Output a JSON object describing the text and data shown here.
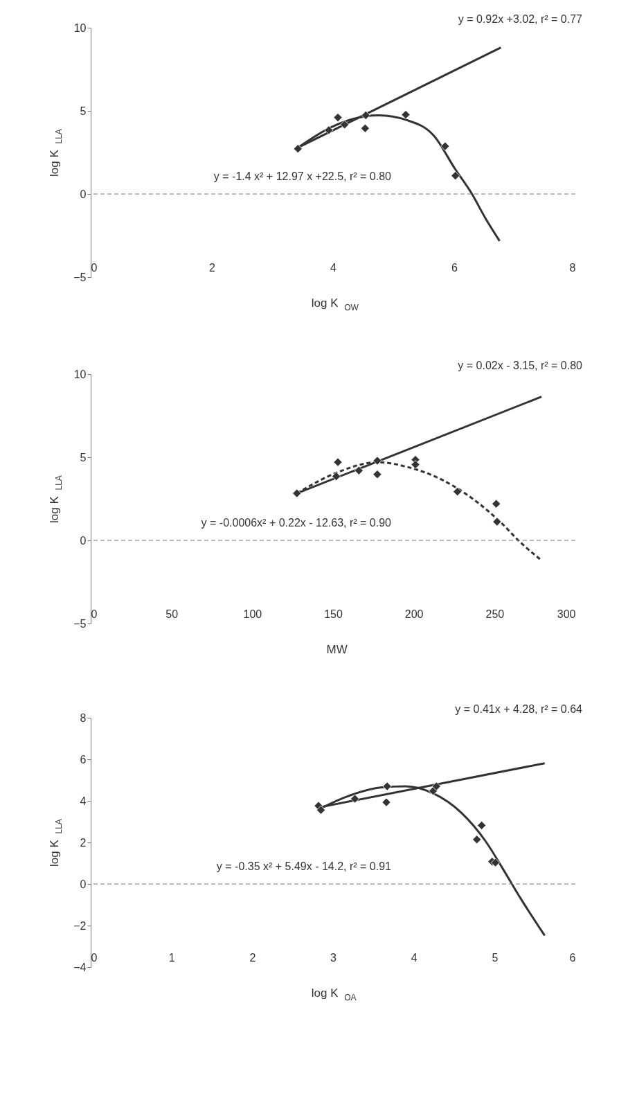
{
  "chart_data": [
    {
      "type": "scatter",
      "xlabel": "log K$_{OW}$",
      "ylabel": "log K$_{LLA}$",
      "xlim": [
        0,
        8
      ],
      "xticks": [
        0,
        2,
        4,
        6,
        8
      ],
      "ylim": [
        -5,
        10
      ],
      "yticks": [
        -5,
        0,
        5,
        10
      ],
      "grid": false,
      "ref_lines": [
        {
          "axis": "y",
          "value": 0,
          "color": "#777777",
          "line_style": "dashed"
        }
      ],
      "series": [
        {
          "type": "scatter",
          "marker": "diamond",
          "color": "#333333",
          "x": [
            3.42,
            3.93,
            4.08,
            4.19,
            4.53,
            4.54,
            5.2,
            5.85,
            6.02
          ],
          "values": [
            2.72,
            3.84,
            4.6,
            4.17,
            3.95,
            4.73,
            4.77,
            2.87,
            1.1
          ]
        },
        {
          "type": "line",
          "line_style": "solid",
          "color": "#333333",
          "x": [
            3.42,
            6.77
          ],
          "values": [
            2.79,
            8.81
          ]
        },
        {
          "type": "line",
          "line_style": "solid",
          "color": "#333333",
          "x": [
            3.42,
            3.97,
            4.53,
            4.76,
            5.21,
            5.67,
            6.01,
            6.29,
            6.52,
            6.75
          ],
          "values": [
            2.79,
            4.02,
            4.67,
            4.73,
            4.45,
            3.48,
            1.53,
            0.02,
            -1.49,
            -2.83
          ]
        }
      ],
      "annotations": [
        "y = 0.92x +3.02, r² = 0.77",
        "y = -1.4 x² + 12.97 x +22.5, r² = 0.80"
      ]
    },
    {
      "type": "scatter",
      "xlabel": "MW",
      "ylabel": "log K$_{LLA}$",
      "xlim": [
        0,
        300
      ],
      "xticks": [
        0,
        50,
        100,
        150,
        200,
        250,
        300
      ],
      "ylim": [
        -5,
        10
      ],
      "yticks": [
        -5,
        0,
        5,
        10
      ],
      "grid": false,
      "ref_lines": [
        {
          "axis": "y",
          "value": 0,
          "color": "#777777",
          "line_style": "dashed"
        }
      ],
      "series": [
        {
          "type": "scatter",
          "marker": "diamond",
          "color": "#333333",
          "x": [
            127.6,
            152,
            153,
            166,
            177.4,
            177.4,
            201,
            201,
            227,
            251,
            251.5
          ],
          "values": [
            2.83,
            3.85,
            4.7,
            4.2,
            4.79,
            3.97,
            4.85,
            4.56,
            2.93,
            2.2,
            1.12
          ]
        },
        {
          "type": "line",
          "line_style": "solid",
          "color": "#333333",
          "x": [
            127.6,
            279
          ],
          "values": [
            2.83,
            8.64
          ]
        },
        {
          "type": "line",
          "line_style": "dashed",
          "color": "#333333",
          "x": [
            127.6,
            153,
            177.4,
            196.6,
            218.4,
            240,
            253,
            266,
            279
          ],
          "values": [
            2.83,
            4.1,
            4.7,
            4.4,
            3.6,
            2.24,
            1.16,
            -0.12,
            -1.2
          ]
        }
      ],
      "annotations": [
        "y = 0.02x - 3.15, r² = 0.80",
        "y = -0.0006x² + 0.22x - 12.63, r² = 0.90"
      ]
    },
    {
      "type": "scatter",
      "xlabel": "log K$_{OA}$",
      "ylabel": "log K$_{LLA}$",
      "xlim": [
        0,
        6
      ],
      "xticks": [
        0,
        1,
        2,
        3,
        4,
        5,
        6
      ],
      "ylim": [
        -4,
        8
      ],
      "yticks": [
        -4,
        -2,
        0,
        2,
        4,
        6,
        8
      ],
      "grid": false,
      "ref_lines": [
        {
          "axis": "y",
          "value": 0,
          "color": "#777777",
          "line_style": "dashed"
        }
      ],
      "series": [
        {
          "type": "scatter",
          "marker": "diamond",
          "color": "#333333",
          "x": [
            2.82,
            2.85,
            3.27,
            3.66,
            3.67,
            4.24,
            4.28,
            4.84,
            4.78,
            4.97,
            5.01
          ],
          "values": [
            3.76,
            3.56,
            4.1,
            3.93,
            4.7,
            4.48,
            4.7,
            2.82,
            2.14,
            1.08,
            1.03
          ]
        },
        {
          "type": "line",
          "line_style": "solid",
          "color": "#333333",
          "x": [
            2.82,
            5.62
          ],
          "values": [
            3.68,
            5.81
          ]
        },
        {
          "type": "line",
          "line_style": "solid",
          "color": "#333333",
          "x": [
            2.82,
            3.16,
            3.6,
            3.9,
            4.24,
            4.59,
            4.89,
            5.11,
            5.32,
            5.62
          ],
          "values": [
            3.59,
            4.19,
            4.65,
            4.7,
            4.36,
            3.42,
            2.05,
            0.68,
            -0.68,
            -2.48
          ]
        }
      ],
      "annotations": [
        "y = 0.41x + 4.28, r² = 0.64",
        "y = -0.35 x² + 5.49x - 14.2, r² = 0.91"
      ]
    }
  ]
}
